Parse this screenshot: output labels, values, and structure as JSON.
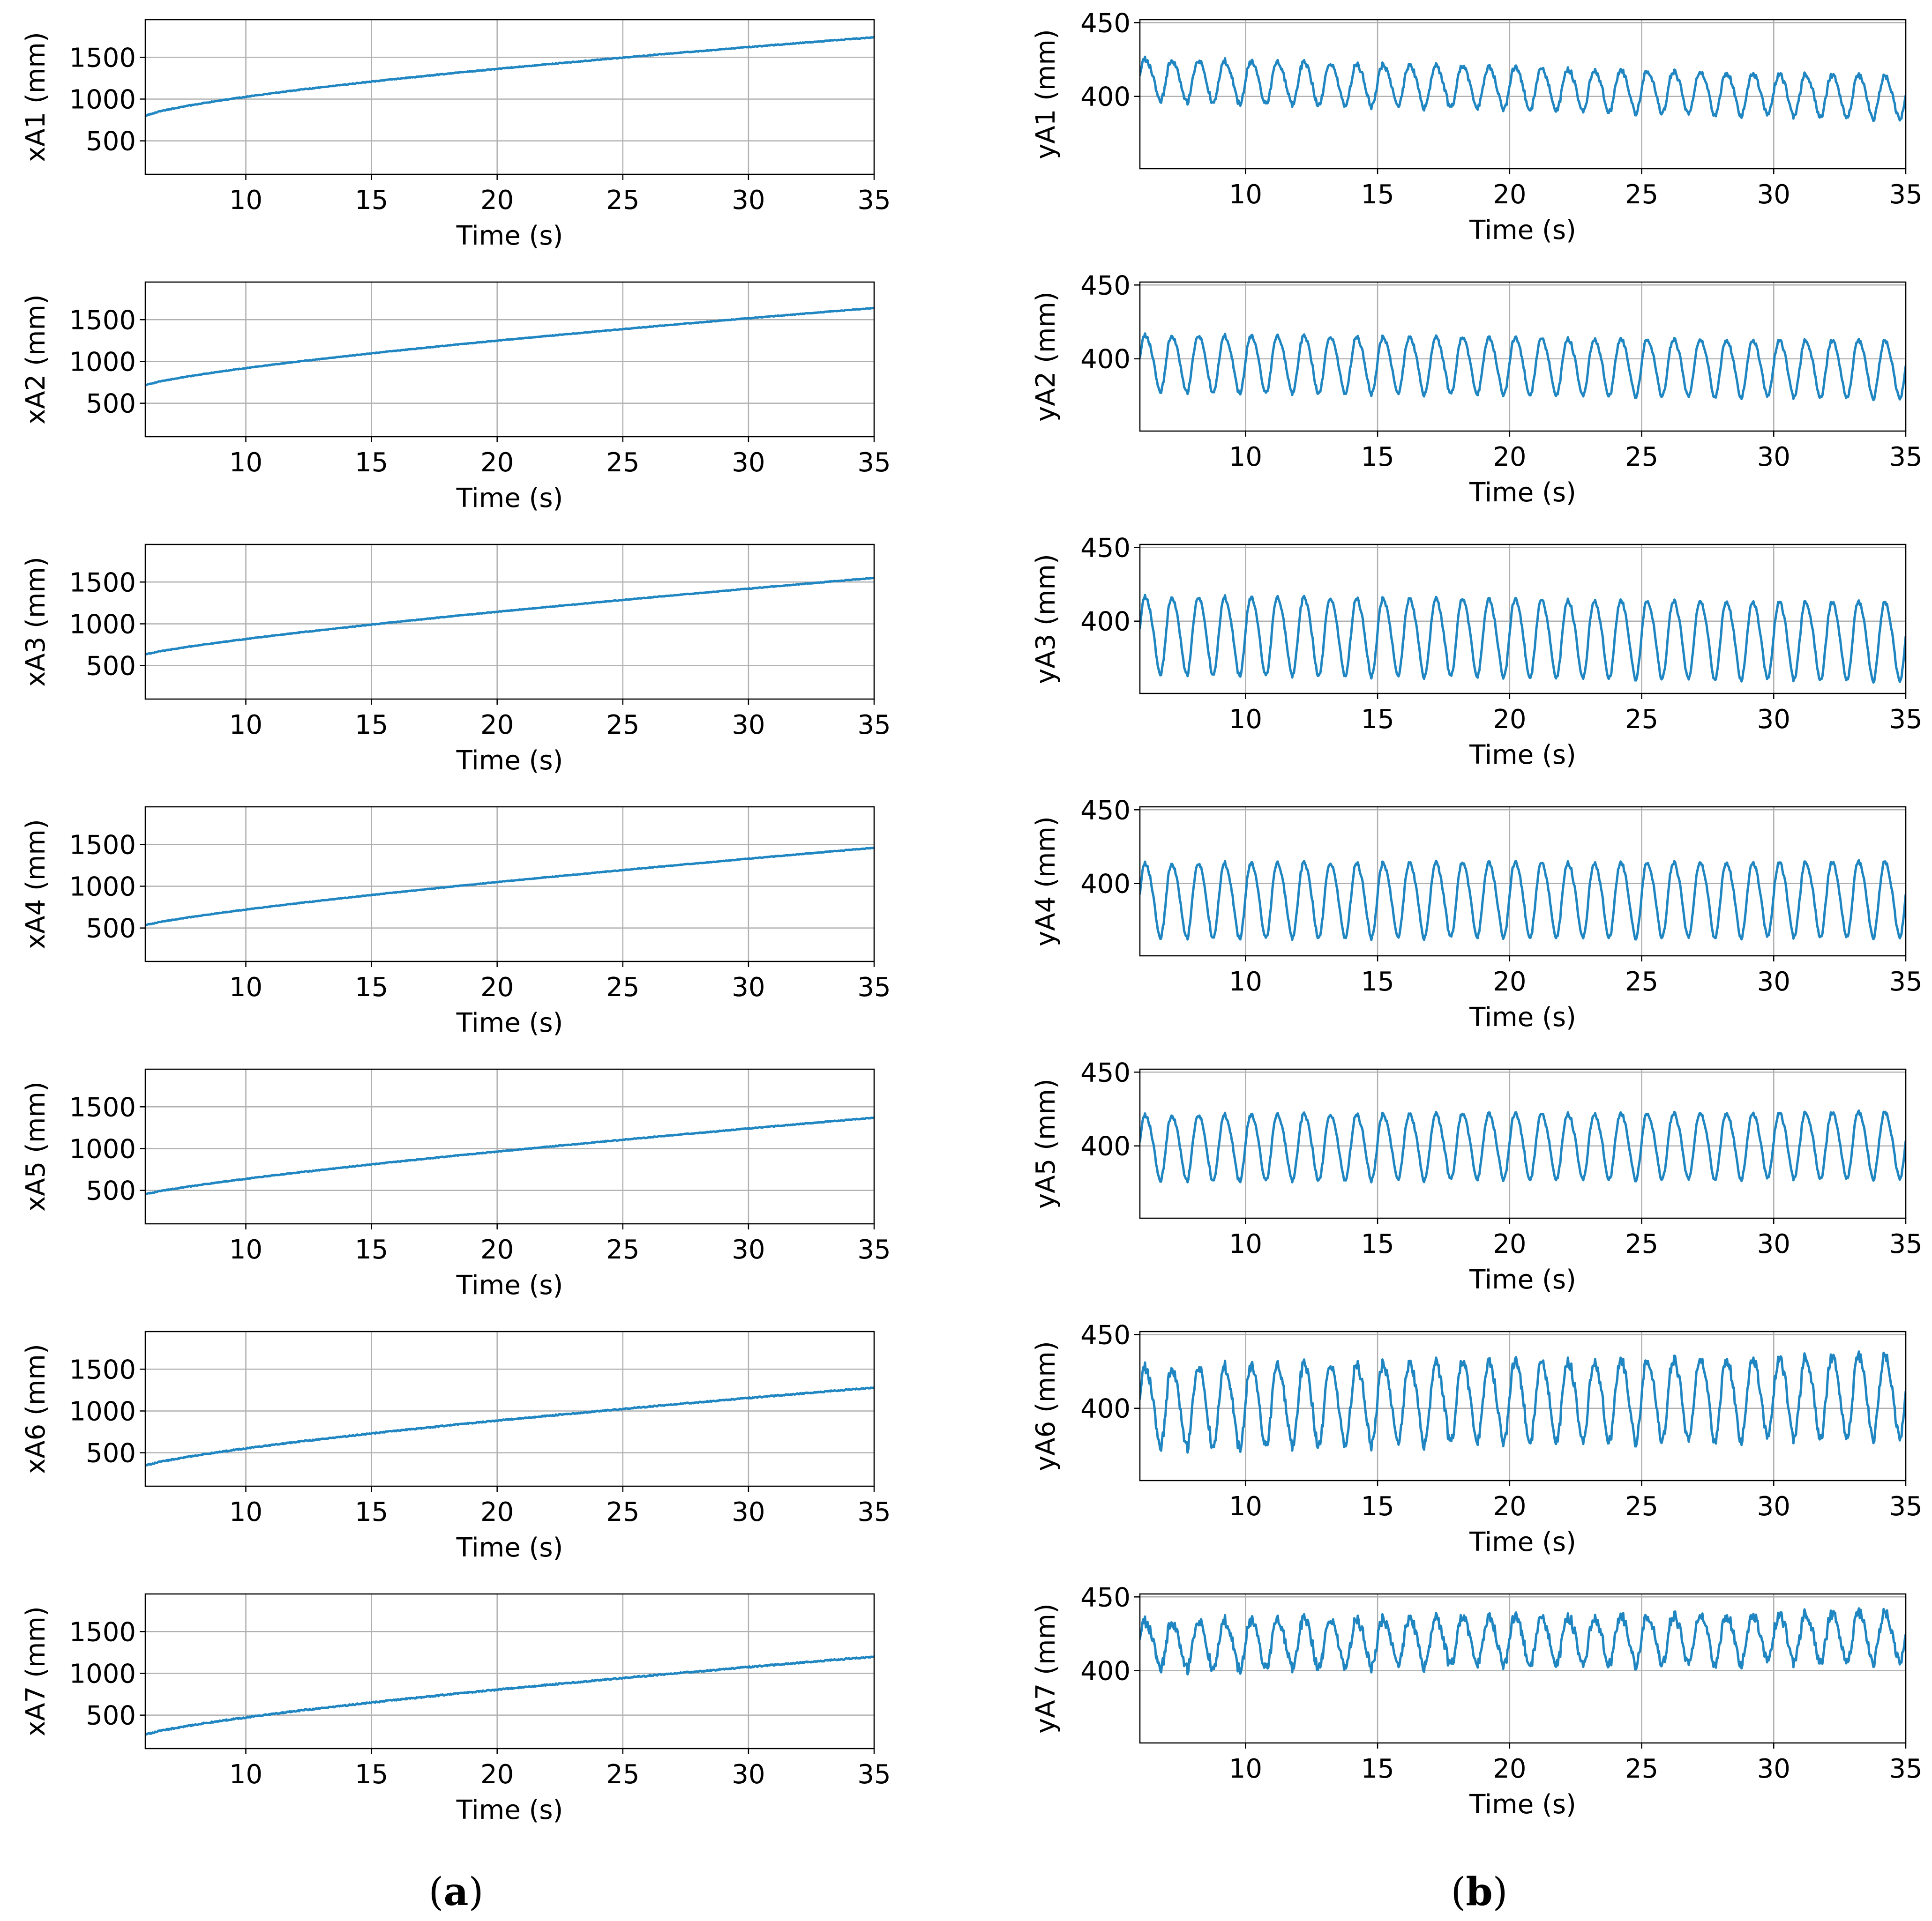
{
  "figure": {
    "panel_labels": [
      {
        "open": "(",
        "letter": "a",
        "close": ")"
      },
      {
        "open": "(",
        "letter": "b",
        "close": ")"
      }
    ],
    "line_color": "#1f86c2",
    "grid_color": "#b0b0b0"
  },
  "chart_data": [
    {
      "id": "xA1",
      "type": "line",
      "column": "a",
      "xlabel": "Time (s)",
      "ylabel": "xA1 (mm)",
      "xlim": [
        6,
        35
      ],
      "ylim": [
        100,
        1950
      ],
      "xticks": [
        10,
        15,
        20,
        25,
        30,
        35
      ],
      "yticks": [
        500,
        1000,
        1500
      ],
      "grid": true,
      "x_start": 6,
      "x_end": 35,
      "start": 790,
      "end": 1740,
      "shape": 0.7,
      "osc_amp": 0,
      "osc_period": 1.0,
      "noise": 5
    },
    {
      "id": "xA2",
      "type": "line",
      "column": "a",
      "xlabel": "Time (s)",
      "ylabel": "xA2 (mm)",
      "xlim": [
        6,
        35
      ],
      "ylim": [
        100,
        1950
      ],
      "xticks": [
        10,
        15,
        20,
        25,
        30,
        35
      ],
      "yticks": [
        500,
        1000,
        1500
      ],
      "grid": true,
      "x_start": 6,
      "x_end": 35,
      "start": 710,
      "end": 1640,
      "shape": 0.75,
      "osc_amp": 0,
      "osc_period": 1.0,
      "noise": 4
    },
    {
      "id": "xA3",
      "type": "line",
      "column": "a",
      "xlabel": "Time (s)",
      "ylabel": "xA3 (mm)",
      "xlim": [
        6,
        35
      ],
      "ylim": [
        100,
        1950
      ],
      "xticks": [
        10,
        15,
        20,
        25,
        30,
        35
      ],
      "yticks": [
        500,
        1000,
        1500
      ],
      "grid": true,
      "x_start": 6,
      "x_end": 35,
      "start": 630,
      "end": 1550,
      "shape": 0.8,
      "osc_amp": 0,
      "osc_period": 1.0,
      "noise": 4
    },
    {
      "id": "xA4",
      "type": "line",
      "column": "a",
      "xlabel": "Time (s)",
      "ylabel": "xA4 (mm)",
      "xlim": [
        6,
        35
      ],
      "ylim": [
        100,
        1950
      ],
      "xticks": [
        10,
        15,
        20,
        25,
        30,
        35
      ],
      "yticks": [
        500,
        1000,
        1500
      ],
      "grid": true,
      "x_start": 6,
      "x_end": 35,
      "start": 530,
      "end": 1460,
      "shape": 0.8,
      "osc_amp": 0,
      "osc_period": 1.0,
      "noise": 4
    },
    {
      "id": "xA5",
      "type": "line",
      "column": "a",
      "xlabel": "Time (s)",
      "ylabel": "xA5 (mm)",
      "xlim": [
        6,
        35
      ],
      "ylim": [
        100,
        1950
      ],
      "xticks": [
        10,
        15,
        20,
        25,
        30,
        35
      ],
      "yticks": [
        500,
        1000,
        1500
      ],
      "grid": true,
      "x_start": 6,
      "x_end": 35,
      "start": 450,
      "end": 1370,
      "shape": 0.8,
      "osc_amp": 0,
      "osc_period": 1.0,
      "noise": 5
    },
    {
      "id": "xA6",
      "type": "line",
      "column": "a",
      "xlabel": "Time (s)",
      "ylabel": "xA6 (mm)",
      "xlim": [
        6,
        35
      ],
      "ylim": [
        100,
        1950
      ],
      "xticks": [
        10,
        15,
        20,
        25,
        30,
        35
      ],
      "yticks": [
        500,
        1000,
        1500
      ],
      "grid": true,
      "x_start": 6,
      "x_end": 35,
      "start": 340,
      "end": 1280,
      "shape": 0.75,
      "osc_amp": 0,
      "osc_period": 1.0,
      "noise": 7
    },
    {
      "id": "xA7",
      "type": "line",
      "column": "a",
      "xlabel": "Time (s)",
      "ylabel": "xA7 (mm)",
      "xlim": [
        6,
        35
      ],
      "ylim": [
        100,
        1950
      ],
      "xticks": [
        10,
        15,
        20,
        25,
        30,
        35
      ],
      "yticks": [
        500,
        1000,
        1500
      ],
      "grid": true,
      "x_start": 6,
      "x_end": 35,
      "start": 260,
      "end": 1200,
      "shape": 0.75,
      "osc_amp": 0,
      "osc_period": 1.0,
      "noise": 8
    },
    {
      "id": "yA1",
      "type": "line",
      "column": "b",
      "xlabel": "Time (s)",
      "ylabel": "yA1 (mm)",
      "xlim": [
        6,
        35
      ],
      "ylim": [
        351,
        452
      ],
      "xticks": [
        10,
        15,
        20,
        25,
        30,
        35
      ],
      "yticks": [
        400,
        450
      ],
      "grid": true,
      "x_start": 6,
      "x_end": 35,
      "start": 412,
      "end": 400,
      "shape": 1,
      "osc_amp": 14,
      "osc_period": 1.0,
      "noise": 2
    },
    {
      "id": "yA2",
      "type": "line",
      "column": "b",
      "xlabel": "Time (s)",
      "ylabel": "yA2 (mm)",
      "xlim": [
        6,
        35
      ],
      "ylim": [
        351,
        452
      ],
      "xticks": [
        10,
        15,
        20,
        25,
        30,
        35
      ],
      "yticks": [
        400,
        450
      ],
      "grid": true,
      "x_start": 6,
      "x_end": 35,
      "start": 398,
      "end": 394,
      "shape": 1,
      "osc_amp": 19,
      "osc_period": 1.0,
      "noise": 1.5
    },
    {
      "id": "yA3",
      "type": "line",
      "column": "b",
      "xlabel": "Time (s)",
      "ylabel": "yA3 (mm)",
      "xlim": [
        6,
        35
      ],
      "ylim": [
        351,
        452
      ],
      "xticks": [
        10,
        15,
        20,
        25,
        30,
        35
      ],
      "yticks": [
        400,
        450
      ],
      "grid": true,
      "x_start": 6,
      "x_end": 35,
      "start": 392,
      "end": 388,
      "shape": 1,
      "osc_amp": 26,
      "osc_period": 1.0,
      "noise": 1.5
    },
    {
      "id": "yA4",
      "type": "line",
      "column": "b",
      "xlabel": "Time (s)",
      "ylabel": "yA4 (mm)",
      "xlim": [
        6,
        35
      ],
      "ylim": [
        351,
        452
      ],
      "xticks": [
        10,
        15,
        20,
        25,
        30,
        35
      ],
      "yticks": [
        400,
        450
      ],
      "grid": true,
      "x_start": 6,
      "x_end": 35,
      "start": 390,
      "end": 391,
      "shape": 1,
      "osc_amp": 25,
      "osc_period": 1.0,
      "noise": 1.5
    },
    {
      "id": "yA5",
      "type": "line",
      "column": "b",
      "xlabel": "Time (s)",
      "ylabel": "yA5 (mm)",
      "xlim": [
        6,
        35
      ],
      "ylim": [
        351,
        452
      ],
      "xticks": [
        10,
        15,
        20,
        25,
        30,
        35
      ],
      "yticks": [
        400,
        450
      ],
      "grid": true,
      "x_start": 6,
      "x_end": 35,
      "start": 400,
      "end": 402,
      "shape": 1,
      "osc_amp": 22,
      "osc_period": 1.0,
      "noise": 1.5
    },
    {
      "id": "yA6",
      "type": "line",
      "column": "b",
      "xlabel": "Time (s)",
      "ylabel": "yA6 (mm)",
      "xlim": [
        6,
        35
      ],
      "ylim": [
        351,
        452
      ],
      "xticks": [
        10,
        15,
        20,
        25,
        30,
        35
      ],
      "yticks": [
        400,
        450
      ],
      "grid": true,
      "x_start": 6,
      "x_end": 35,
      "start": 402,
      "end": 410,
      "shape": 1,
      "osc_amp": 27,
      "osc_period": 1.0,
      "noise": 4
    },
    {
      "id": "yA7",
      "type": "line",
      "column": "b",
      "xlabel": "Time (s)",
      "ylabel": "yA7 (mm)",
      "xlim": [
        6,
        35
      ],
      "ylim": [
        351,
        452
      ],
      "xticks": [
        10,
        15,
        20,
        25,
        30,
        35
      ],
      "yticks": [
        400,
        450
      ],
      "grid": true,
      "x_start": 6,
      "x_end": 35,
      "start": 418,
      "end": 424,
      "shape": 1,
      "osc_amp": 16,
      "osc_period": 1.0,
      "noise": 4
    }
  ]
}
